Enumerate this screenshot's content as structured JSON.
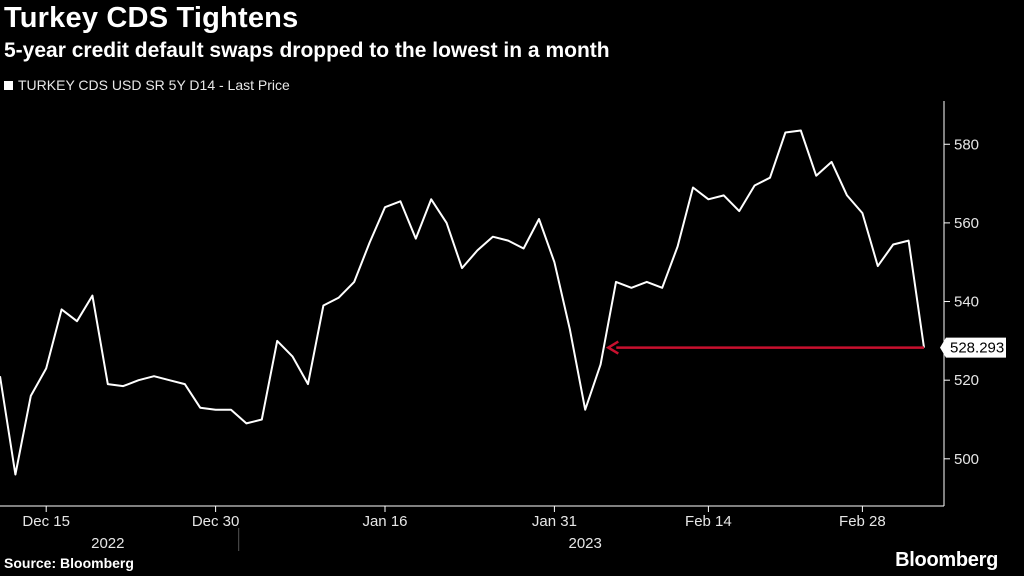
{
  "header": {
    "title": "Turkey CDS Tightens",
    "subtitle": "5-year credit default swaps dropped to the lowest in a month"
  },
  "footer": {
    "source": "Source: Bloomberg",
    "brand": "Bloomberg"
  },
  "colors": {
    "background": "#000000",
    "line": "#ffffff",
    "arrow": "#c8102e",
    "axis": "#ffffff"
  },
  "chart_data": {
    "type": "line",
    "title": "Turkey CDS Tightens",
    "subtitle": "5-year credit default swaps dropped to the lowest in a month",
    "legend_position": "top-left",
    "grid": false,
    "ylim": [
      488,
      591
    ],
    "y_ticks": [
      500,
      520,
      540,
      560,
      580
    ],
    "x_ticks": [
      {
        "label": "Dec 15",
        "index": 3
      },
      {
        "label": "Dec 30",
        "index": 14
      },
      {
        "label": "Jan 16",
        "index": 25
      },
      {
        "label": "Jan 31",
        "index": 36
      },
      {
        "label": "Feb 14",
        "index": 46
      },
      {
        "label": "Feb 28",
        "index": 56
      }
    ],
    "year_labels": [
      {
        "label": "2022",
        "index": 7
      },
      {
        "label": "2023",
        "index": 38
      }
    ],
    "year_separator_index": 15,
    "series": [
      {
        "name": "TURKEY CDS USD SR 5Y D14 - Last Price",
        "values": [
          521,
          496,
          516,
          523,
          538,
          535,
          541.5,
          519,
          518.5,
          520,
          521,
          520,
          519,
          513,
          512.5,
          512.5,
          509,
          510,
          530,
          526,
          519,
          539,
          541,
          545,
          555,
          564,
          565.5,
          556,
          566,
          560,
          548.5,
          553,
          556.5,
          555.5,
          553.5,
          561,
          550,
          533,
          512.5,
          524,
          545,
          543.5,
          545,
          543.5,
          554,
          569,
          566,
          567,
          563,
          569.5,
          571.5,
          583,
          583.5,
          572,
          575.5,
          567,
          562.5,
          549,
          554.5,
          555.5,
          528.293
        ]
      }
    ],
    "last_value_label": "528.293",
    "annotation": {
      "type": "arrow",
      "from_index": 60,
      "to_index": 39.5,
      "y_value": 528.293
    }
  }
}
